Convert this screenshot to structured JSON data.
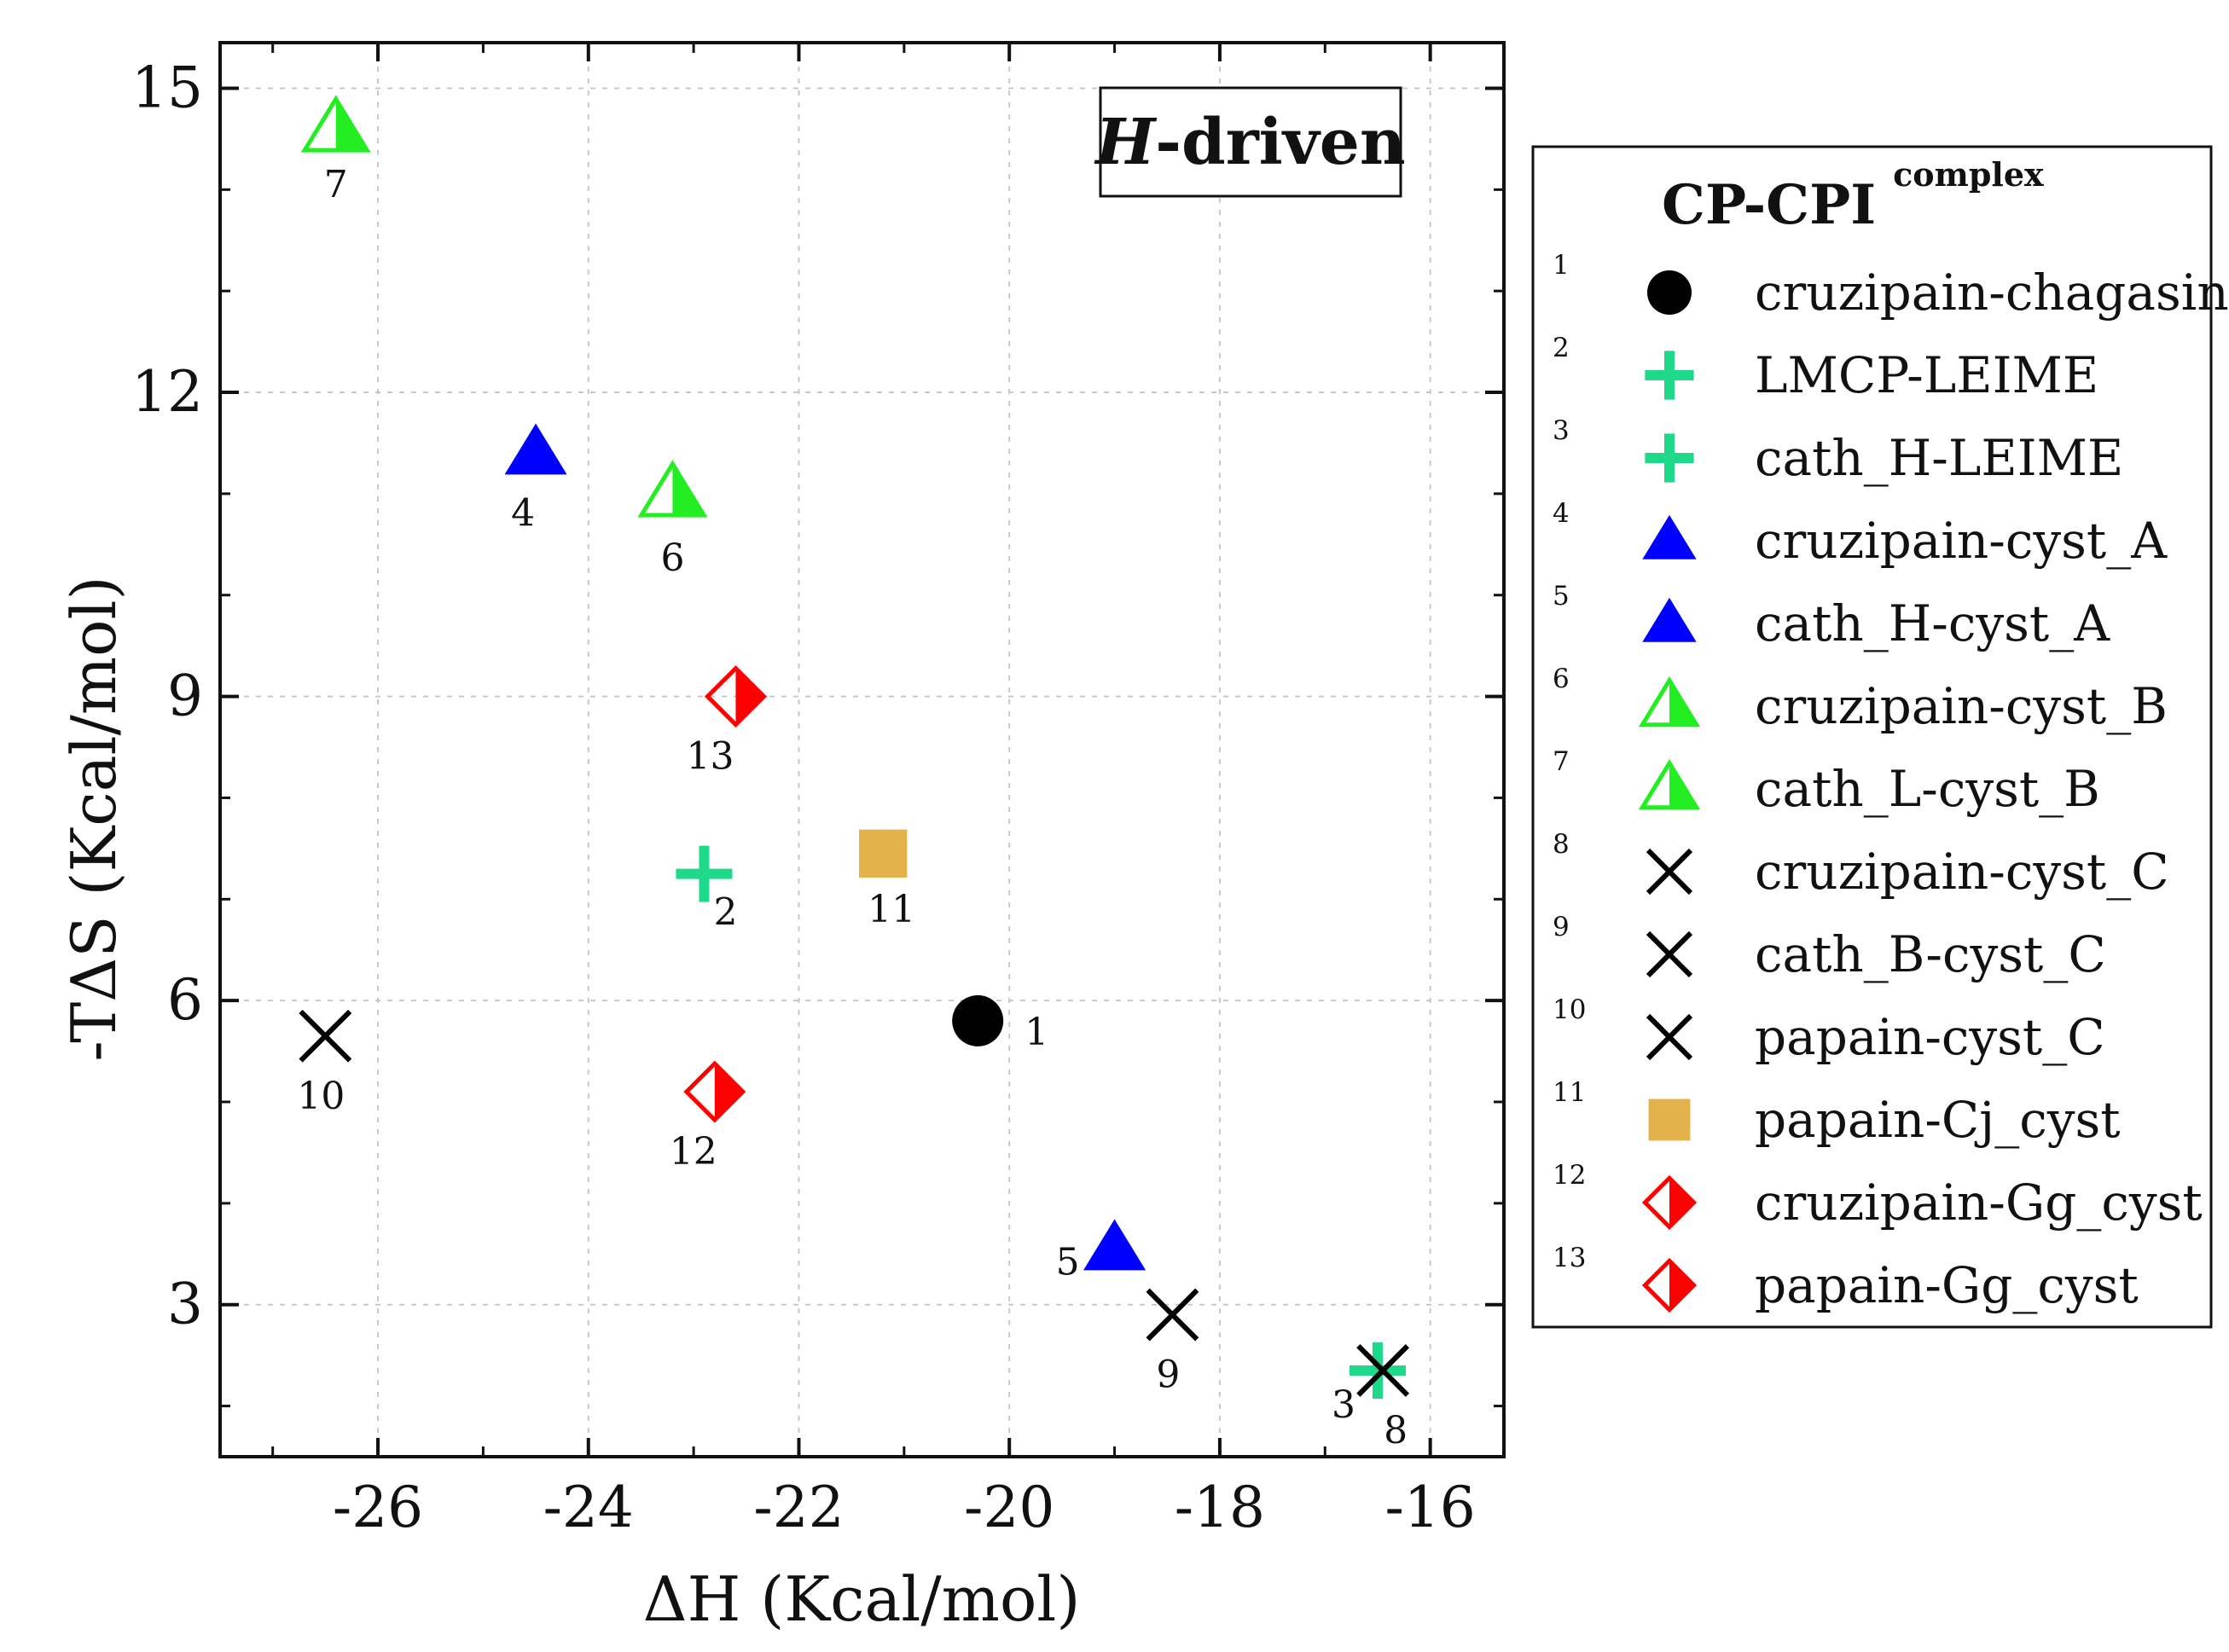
{
  "chart_data": {
    "type": "scatter",
    "title": "",
    "xlabel": "ΔH (Kcal/mol)",
    "ylabel": "-TΔS (Kcal/mol)",
    "xlim": [
      -27.5,
      -15.3
    ],
    "ylim": [
      1.5,
      15.45
    ],
    "xticks": [
      -26,
      -24,
      -22,
      -20,
      -18,
      -16
    ],
    "yticks": [
      3,
      6,
      9,
      12,
      15
    ],
    "x_minor_step": 1,
    "y_minor_step": 1,
    "grid": true,
    "annotation": {
      "italic_part": "H",
      "rest": "-driven"
    },
    "legend": {
      "position": "right",
      "title": "CP-CPI",
      "title_superscript": "complex"
    },
    "points": [
      {
        "id": "1",
        "label": "cruzipain-chagasin",
        "marker": "circle",
        "color": "#000000",
        "x": -20.3,
        "y": 5.8
      },
      {
        "id": "2",
        "label": "LMCP-LEIME",
        "marker": "plus",
        "color": "#1ed98a",
        "x": -22.9,
        "y": 7.25
      },
      {
        "id": "3",
        "label": "cath_H-LEIME",
        "marker": "plus",
        "color": "#1ed98a",
        "x": -16.5,
        "y": 2.35
      },
      {
        "id": "4",
        "label": "cruzipain-cyst_A",
        "marker": "triangle",
        "color": "#0000ff",
        "x": -24.5,
        "y": 11.4
      },
      {
        "id": "5",
        "label": "cath_H-cyst_A",
        "marker": "triangle",
        "color": "#0000ff",
        "x": -19.0,
        "y": 3.55
      },
      {
        "id": "6",
        "label": "cruzipain-cyst_B",
        "marker": "half-triangle",
        "color": "#22ee22",
        "x": -23.2,
        "y": 11.0
      },
      {
        "id": "7",
        "label": "cath_L-cyst_B",
        "marker": "half-triangle",
        "color": "#22ee22",
        "x": -26.4,
        "y": 14.6
      },
      {
        "id": "8",
        "label": "cruzipain-cyst_C",
        "marker": "x",
        "color": "#000000",
        "x": -16.45,
        "y": 2.35
      },
      {
        "id": "9",
        "label": "cath_B-cyst_C",
        "marker": "x",
        "color": "#000000",
        "x": -18.45,
        "y": 2.9
      },
      {
        "id": "10",
        "label": "papain-cyst_C",
        "marker": "x",
        "color": "#000000",
        "x": -26.5,
        "y": 5.65
      },
      {
        "id": "11",
        "label": "papain-Cj_cyst",
        "marker": "square",
        "color": "#e3b24a",
        "x": -21.2,
        "y": 7.45
      },
      {
        "id": "12",
        "label": "cruzipain-Gg_cyst",
        "marker": "half-diamond",
        "color": "#ff0000",
        "x": -22.8,
        "y": 5.1
      },
      {
        "id": "13",
        "label": "papain-Gg_cyst",
        "marker": "half-diamond",
        "color": "#ff0000",
        "x": -22.6,
        "y": 9.0
      }
    ]
  }
}
